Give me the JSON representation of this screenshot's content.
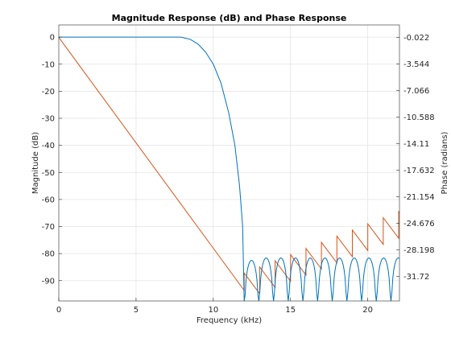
{
  "chart_data": {
    "type": "line",
    "title": "Magnitude Response (dB) and Phase Response",
    "xlabel": "Frequency (kHz)",
    "ylabel_left": "Magnitude (dB)",
    "ylabel_right": "Phase (radians)",
    "xlim": [
      0,
      22.05
    ],
    "ylim_left": [
      -97.5,
      4.5
    ],
    "ylim_right": [
      -35.0,
      1.63
    ],
    "x_ticks": [
      "0",
      "5",
      "10",
      "15",
      "20"
    ],
    "x_tick_values": [
      0,
      5,
      10,
      15,
      20
    ],
    "y_left_ticks": [
      "0",
      "-10",
      "-20",
      "-30",
      "-40",
      "-50",
      "-60",
      "-70",
      "-80",
      "-90"
    ],
    "y_left_tick_values": [
      0,
      -10,
      -20,
      -30,
      -40,
      -50,
      -60,
      -70,
      -80,
      -90
    ],
    "y_right_ticks": [
      "-0.022",
      "-3.544",
      "-7.066",
      "-10.588",
      "-14.11",
      "-17.632",
      "-21.154",
      "-24.676",
      "-28.198",
      "-31.72"
    ],
    "y_right_tick_values": [
      -0.022,
      -3.544,
      -7.066,
      -10.588,
      -14.11,
      -17.632,
      -21.154,
      -24.676,
      -28.198,
      -31.72
    ],
    "grid": true,
    "series": [
      {
        "axis": "left",
        "color": "#0072BD",
        "passband": {
          "x_start": 0,
          "x_flat_end": 7.9,
          "value": 0
        },
        "transition": {
          "x": [
            7.9,
            8.5,
            9.0,
            9.5,
            10.0,
            10.5,
            11.0,
            11.4,
            11.7,
            11.9,
            12.0
          ],
          "y": [
            0,
            -0.8,
            -2.5,
            -5.5,
            -10,
            -17,
            -28,
            -40,
            -55,
            -70,
            -97.5
          ]
        },
        "stopband": {
          "x_start": 12.0,
          "x_end": 22.05,
          "lobe_width": 0.95,
          "peak_db": -81.6,
          "first_peak_db": -82.5,
          "null_db": -97.5
        }
      },
      {
        "axis": "right",
        "color": "#D95319",
        "linear_segment": {
          "x": [
            0,
            12.0
          ],
          "y": [
            -0.022,
            -33.6
          ]
        },
        "sawtooth": {
          "x_start": 12.0,
          "x_end": 22.05,
          "period": 1.0,
          "start_value": -31.3,
          "end_value": -23.1,
          "drop": 2.72
        }
      }
    ]
  }
}
